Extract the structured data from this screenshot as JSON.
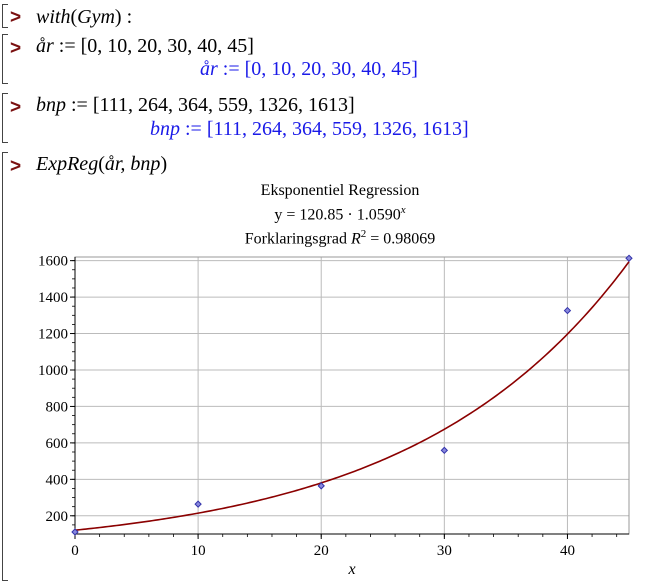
{
  "cmd1": {
    "prompt": ">",
    "name": "with",
    "arg": "Gym",
    "terminator": ":"
  },
  "cmd2": {
    "prompt": ">",
    "var": "år",
    "assign": ":=",
    "value_text": "[0, 10, 20, 30, 40, 45]"
  },
  "out2": {
    "var": "år",
    "assign": ":=",
    "value_text": "[0, 10, 20, 30, 40, 45]"
  },
  "cmd3": {
    "prompt": ">",
    "var": "bnp",
    "assign": ":=",
    "value_text": "[111, 264, 364, 559, 1326, 1613]"
  },
  "out3": {
    "var": "bnp",
    "assign": ":=",
    "value_text": "[111, 264, 364, 559, 1326, 1613]"
  },
  "cmd4": {
    "prompt": ">",
    "name": "ExpReg",
    "args": "år, bnp"
  },
  "plot": {
    "title": "Eksponentiel Regression",
    "equation_prefix": "y = 120.85 · 1.0590",
    "equation_exp": "x",
    "r2_prefix": "Forklaringsgrad",
    "r2_symbol": "R",
    "r2_exp": "2",
    "r2_value": " = 0.98069"
  },
  "chart_data": {
    "type": "scatter",
    "title": "Eksponentiel Regression",
    "xlabel": "x",
    "ylabel": "",
    "xlim": [
      0,
      45
    ],
    "ylim": [
      100,
      1620
    ],
    "xticks": [
      0,
      10,
      20,
      30,
      40
    ],
    "yticks": [
      200,
      400,
      600,
      800,
      1000,
      1200,
      1400,
      1600
    ],
    "grid": true,
    "points": {
      "x": [
        0,
        10,
        20,
        30,
        40,
        45
      ],
      "y": [
        111,
        264,
        364,
        559,
        1326,
        1613
      ],
      "color": "#3333aa"
    },
    "fit": {
      "model": "exponential",
      "a": 120.85,
      "b": 1.059,
      "color": "#8b0000"
    }
  }
}
